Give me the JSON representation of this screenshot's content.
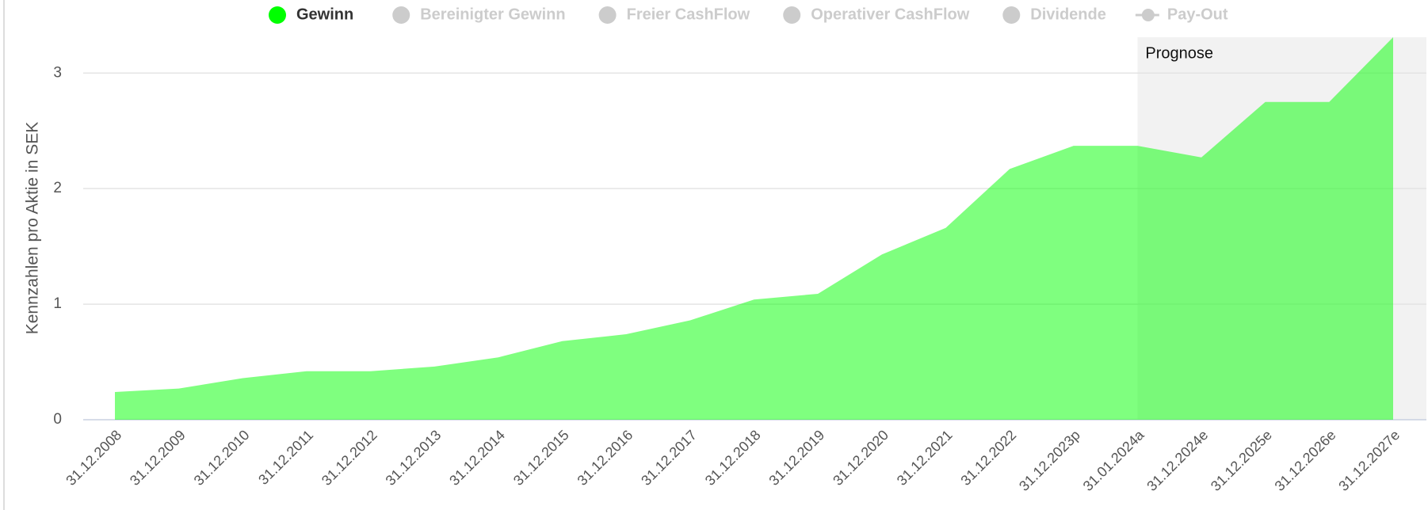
{
  "chart_data": {
    "type": "area",
    "y_label": "Kennzahlen pro Aktie in SEK",
    "categories": [
      "31.12.2008",
      "31.12.2009",
      "31.12.2010",
      "31.12.2011",
      "31.12.2012",
      "31.12.2013",
      "31.12.2014",
      "31.12.2015",
      "31.12.2016",
      "31.12.2017",
      "31.12.2018",
      "31.12.2019",
      "31.12.2020",
      "31.12.2021",
      "31.12.2022",
      "31.12.2023p",
      "31.01.2024a",
      "31.12.2024e",
      "31.12.2025e",
      "31.12.2026e",
      "31.12.2027e"
    ],
    "series": [
      {
        "name": "Gewinn",
        "color": "#00ff00",
        "values": [
          0.24,
          0.27,
          0.36,
          0.42,
          0.42,
          0.46,
          0.54,
          0.68,
          0.74,
          0.86,
          1.04,
          1.09,
          1.43,
          1.66,
          2.17,
          2.37,
          2.37,
          2.27,
          2.75,
          2.75,
          3.31
        ]
      }
    ],
    "hidden_series": [
      "Bereinigter Gewinn",
      "Freier CashFlow",
      "Operativer CashFlow",
      "Dividende",
      "Pay-Out"
    ],
    "annotation": {
      "text": "Prognose",
      "from": "31.01.2024a"
    },
    "ylim": [
      0,
      3.31
    ],
    "yticks": [
      0,
      1,
      2,
      3
    ],
    "grid": true
  }
}
